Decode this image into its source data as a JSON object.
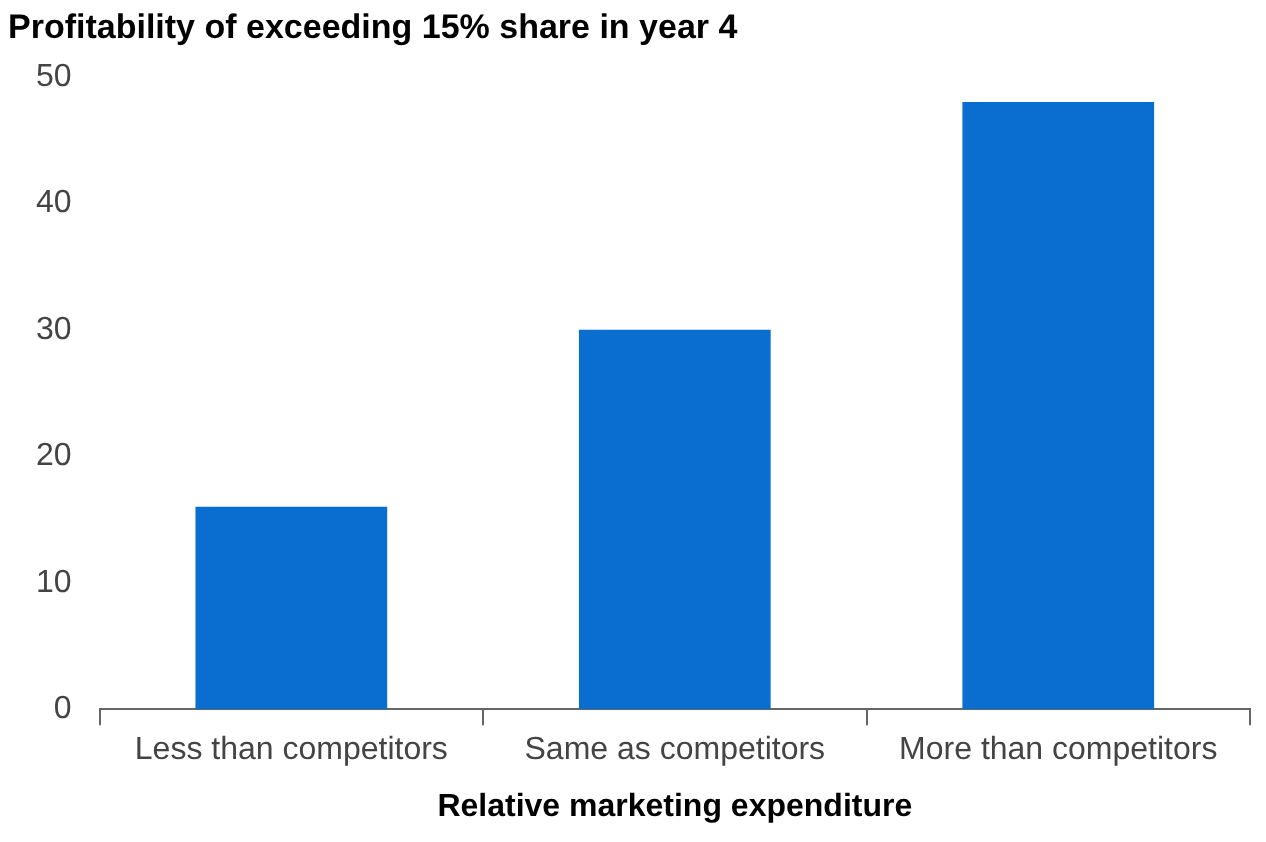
{
  "chart_data": {
    "type": "bar",
    "title": "Profitability of exceeding 15% share in year 4",
    "xlabel": "Relative marketing expenditure",
    "categories": [
      "Less than competitors",
      "Same as competitors",
      "More than competitors"
    ],
    "values": [
      16,
      30,
      48
    ],
    "color": "#0a6dd0",
    "ylim": [
      0,
      50
    ],
    "yticks": [
      0,
      10,
      20,
      30,
      40,
      50
    ],
    "grid": false,
    "legend": false
  }
}
